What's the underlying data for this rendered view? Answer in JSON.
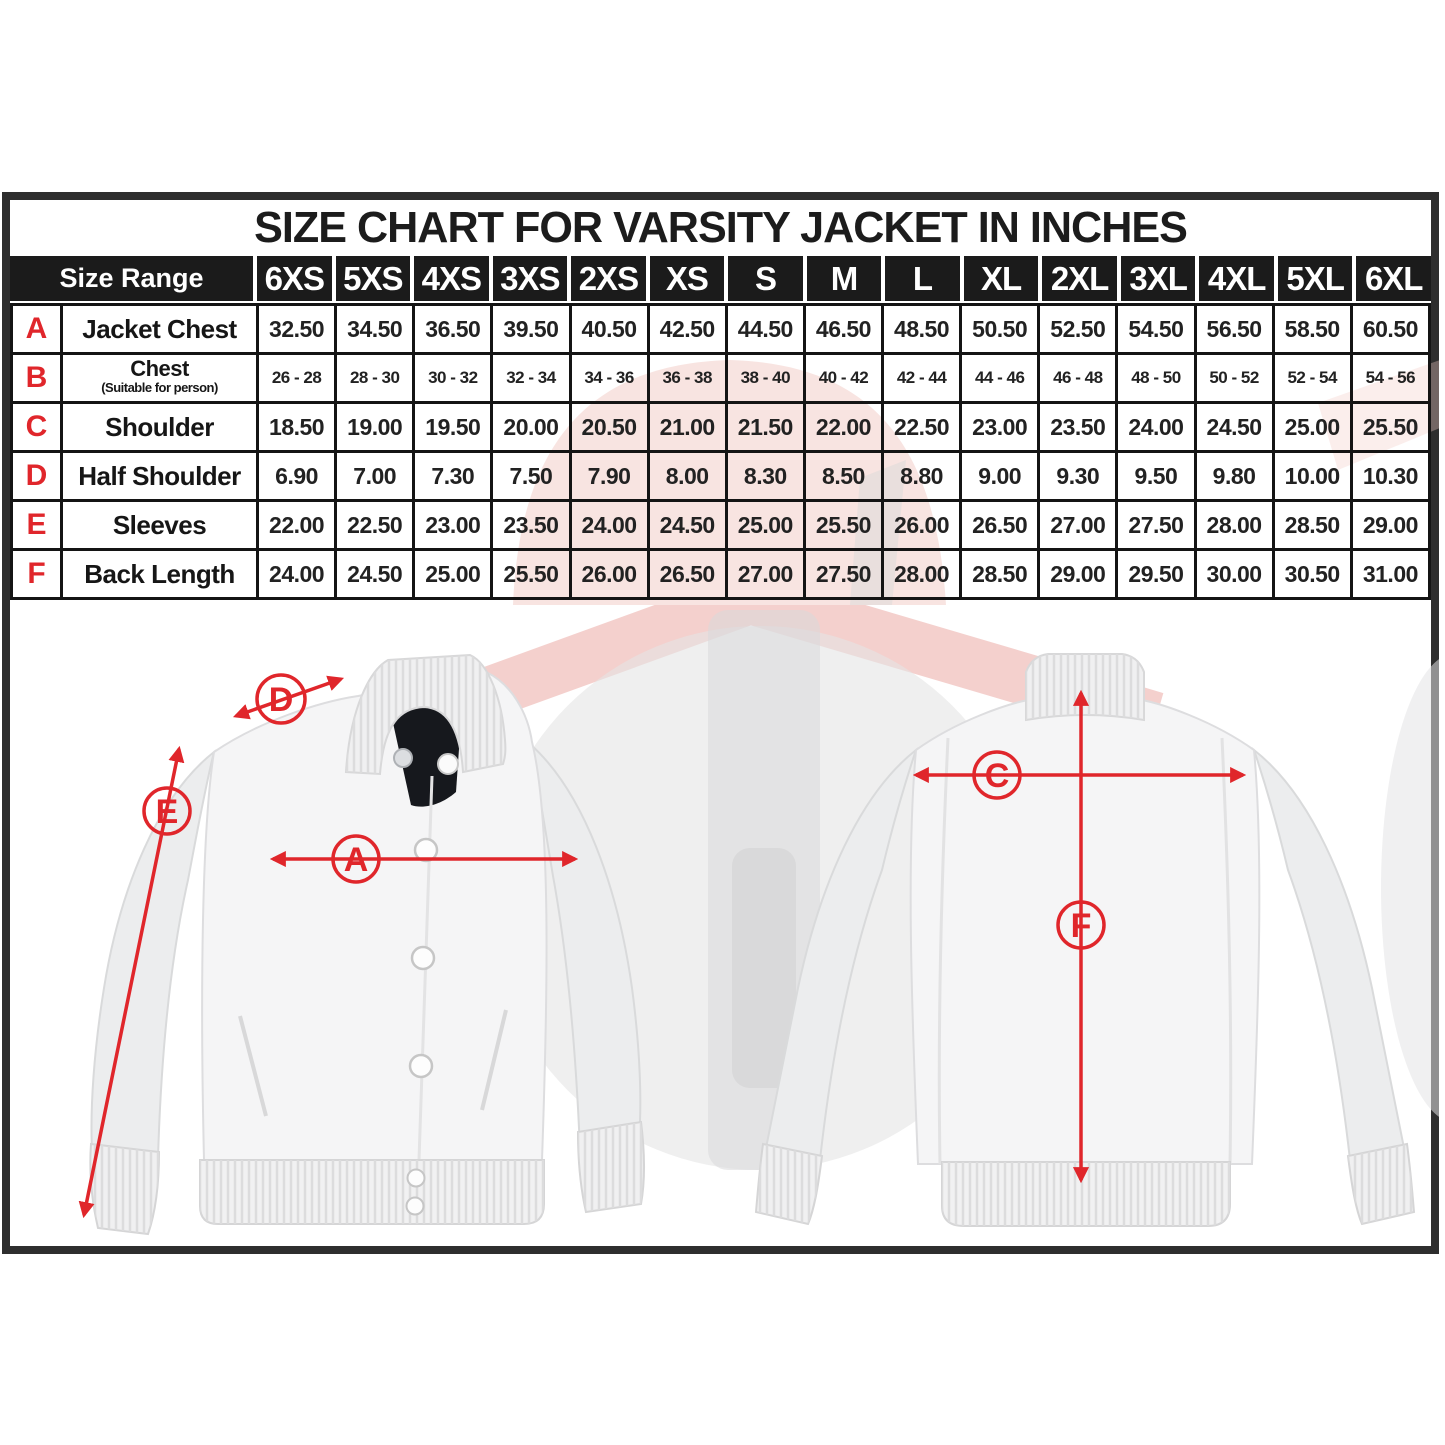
{
  "title": "SIZE CHART FOR VARSITY JACKET IN INCHES",
  "table": {
    "size_range_label": "Size Range",
    "sizes": [
      "6XS",
      "5XS",
      "4XS",
      "3XS",
      "2XS",
      "XS",
      "S",
      "M",
      "L",
      "XL",
      "2XL",
      "3XL",
      "4XL",
      "5XL",
      "6XL"
    ],
    "rows": [
      {
        "letter": "A",
        "label": "Jacket Chest",
        "sublabel": "",
        "values": [
          "32.50",
          "34.50",
          "36.50",
          "39.50",
          "40.50",
          "42.50",
          "44.50",
          "46.50",
          "48.50",
          "50.50",
          "52.50",
          "54.50",
          "56.50",
          "58.50",
          "60.50"
        ]
      },
      {
        "letter": "B",
        "label": "Chest",
        "sublabel": "(Suitable for person)",
        "values": [
          "26 - 28",
          "28 - 30",
          "30 - 32",
          "32 - 34",
          "34 - 36",
          "36 - 38",
          "38 - 40",
          "40 - 42",
          "42 - 44",
          "44 - 46",
          "46 - 48",
          "48 - 50",
          "50 - 52",
          "52 - 54",
          "54 - 56"
        ]
      },
      {
        "letter": "C",
        "label": "Shoulder",
        "sublabel": "",
        "values": [
          "18.50",
          "19.00",
          "19.50",
          "20.00",
          "20.50",
          "21.00",
          "21.50",
          "22.00",
          "22.50",
          "23.00",
          "23.50",
          "24.00",
          "24.50",
          "25.00",
          "25.50"
        ]
      },
      {
        "letter": "D",
        "label": "Half Shoulder",
        "sublabel": "",
        "values": [
          "6.90",
          "7.00",
          "7.30",
          "7.50",
          "7.90",
          "8.00",
          "8.30",
          "8.50",
          "8.80",
          "9.00",
          "9.30",
          "9.50",
          "9.80",
          "10.00",
          "10.30"
        ]
      },
      {
        "letter": "E",
        "label": "Sleeves",
        "sublabel": "",
        "values": [
          "22.00",
          "22.50",
          "23.00",
          "23.50",
          "24.00",
          "24.50",
          "25.00",
          "25.50",
          "26.00",
          "26.50",
          "27.00",
          "27.50",
          "28.00",
          "28.50",
          "29.00"
        ]
      },
      {
        "letter": "F",
        "label": "Back Length",
        "sublabel": "",
        "values": [
          "24.00",
          "24.50",
          "25.00",
          "25.50",
          "26.00",
          "26.50",
          "27.00",
          "27.50",
          "28.00",
          "28.50",
          "29.00",
          "29.50",
          "30.00",
          "30.50",
          "31.00"
        ]
      }
    ]
  },
  "annotations": {
    "front_view": [
      {
        "letter": "D"
      },
      {
        "letter": "E"
      },
      {
        "letter": "A"
      }
    ],
    "back_view": [
      {
        "letter": "C"
      },
      {
        "letter": "F"
      }
    ]
  },
  "colors": {
    "accent_red": "#e0262b",
    "table_black": "#1b1b1b",
    "frame_border": "#2e2e2e"
  }
}
